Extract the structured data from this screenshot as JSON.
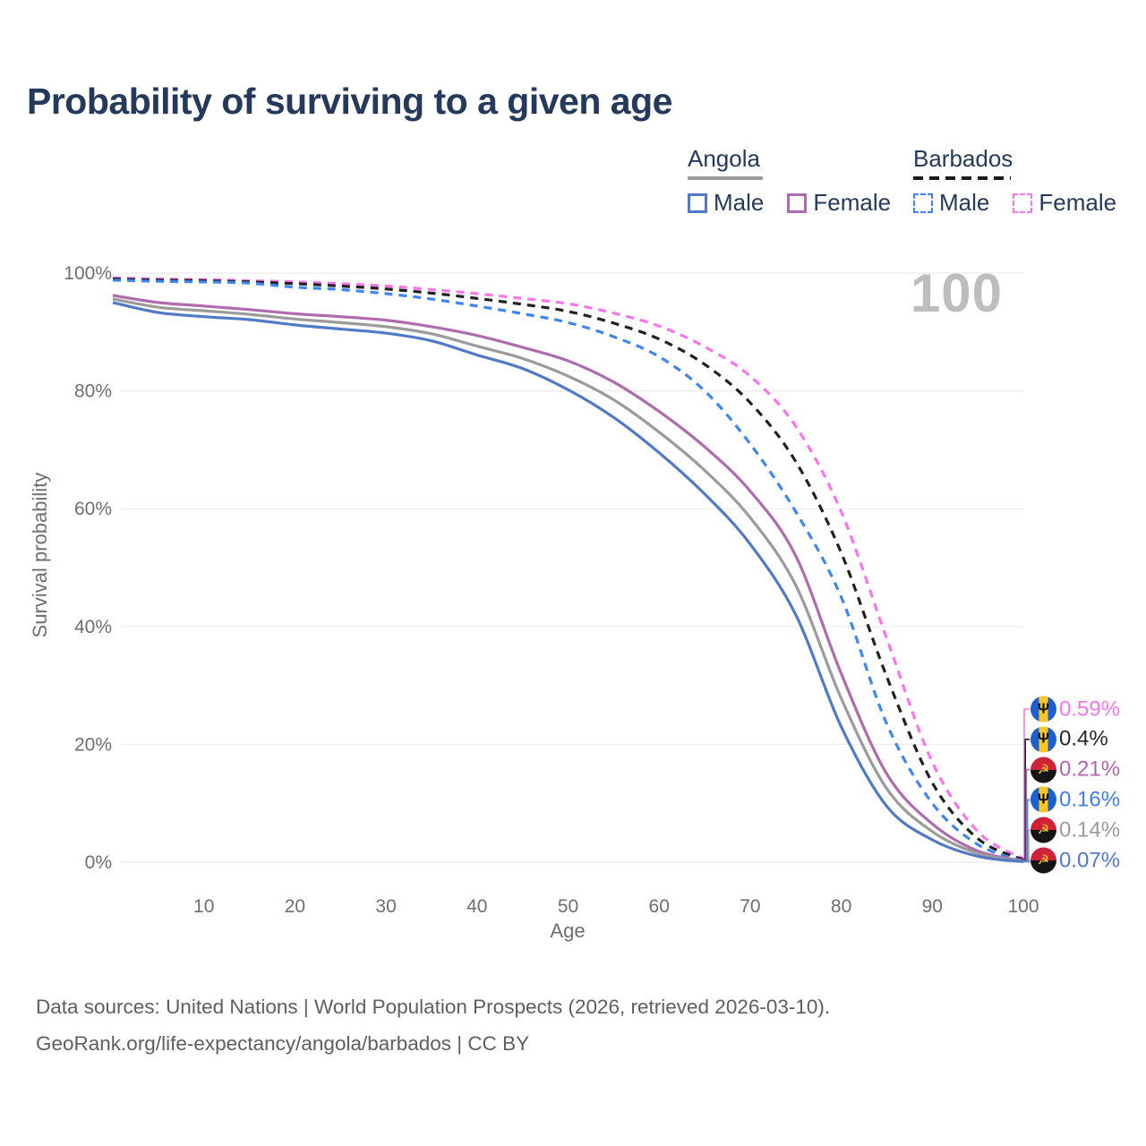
{
  "title": "Probability of surviving to a given age",
  "age_watermark": "100",
  "legend": {
    "angola": {
      "title": "Angola",
      "male_label": "Male",
      "female_label": "Female"
    },
    "barbados": {
      "title": "Barbados",
      "male_label": "Male",
      "female_label": "Female"
    }
  },
  "icons": {
    "barbados_flag_glyph": "Ψ",
    "angola_flag_glyph": "☭"
  },
  "colors": {
    "title_text": "#24395b",
    "axis_text": "#6e6e6e",
    "gridline": "#ebebeb",
    "watermark": "#bdbdbd",
    "angola_male": "#5079c8",
    "angola_female": "#ae6cae",
    "angola_both": "#9b9b9b",
    "barbados_male": "#3e86f2",
    "barbados_female": "#fb74ee",
    "barbados_both": "#212121"
  },
  "chart_data": {
    "type": "line",
    "title": "Probability of surviving to a given age",
    "xlabel": "Age",
    "ylabel": "Survival probability",
    "xlim": [
      0,
      100
    ],
    "ylim": [
      0,
      100
    ],
    "grid": "horizontal-only",
    "legend_position": "top-right",
    "x_ticks": [
      10,
      20,
      30,
      40,
      50,
      60,
      70,
      80,
      90,
      100
    ],
    "y_ticks": [
      0,
      20,
      40,
      60,
      80,
      100
    ],
    "y_tick_suffix": "%",
    "x": [
      0,
      5,
      10,
      15,
      20,
      25,
      30,
      35,
      40,
      45,
      50,
      55,
      60,
      65,
      70,
      75,
      80,
      85,
      90,
      95,
      100
    ],
    "series": [
      {
        "id": "barbados-female",
        "name": "Barbados Female",
        "country": "Barbados",
        "sex": "female",
        "color": "#fb74ee",
        "dash": true,
        "values": [
          99.2,
          99.0,
          98.9,
          98.7,
          98.5,
          98.2,
          97.8,
          97.2,
          96.5,
          95.7,
          94.8,
          93.2,
          91.0,
          87.5,
          82.5,
          74.0,
          59.5,
          38.0,
          17.0,
          5.2,
          0.59
        ]
      },
      {
        "id": "barbados-both",
        "name": "Barbados",
        "country": "Barbados",
        "sex": "both",
        "color": "#212121",
        "dash": true,
        "values": [
          99.0,
          98.8,
          98.7,
          98.5,
          98.2,
          97.8,
          97.3,
          96.6,
          95.7,
          94.7,
          93.5,
          91.5,
          88.8,
          84.5,
          78.0,
          68.0,
          52.5,
          31.5,
          13.5,
          4.0,
          0.4
        ]
      },
      {
        "id": "barbados-male",
        "name": "Barbados Male",
        "country": "Barbados",
        "sex": "male",
        "color": "#3e86f2",
        "dash": true,
        "values": [
          98.8,
          98.6,
          98.5,
          98.3,
          97.6,
          97.2,
          96.5,
          95.6,
          94.4,
          93.1,
          91.6,
          89.2,
          85.8,
          80.0,
          71.0,
          59.5,
          45.0,
          23.5,
          10.0,
          3.0,
          0.16
        ]
      },
      {
        "id": "angola-female",
        "name": "Angola Female",
        "country": "Angola",
        "sex": "female",
        "color": "#ae6cae",
        "dash": false,
        "values": [
          96.2,
          95.0,
          94.4,
          93.8,
          93.1,
          92.6,
          92.0,
          90.9,
          89.4,
          87.4,
          85.1,
          81.5,
          76.5,
          70.5,
          63.0,
          52.0,
          32.0,
          15.0,
          6.5,
          1.9,
          0.21
        ]
      },
      {
        "id": "angola-both",
        "name": "Angola",
        "country": "Angola",
        "sex": "both",
        "color": "#9b9b9b",
        "dash": false,
        "values": [
          95.6,
          94.2,
          93.6,
          93.0,
          92.2,
          91.6,
          90.9,
          89.7,
          87.6,
          85.5,
          82.5,
          78.5,
          73.0,
          66.5,
          58.5,
          47.0,
          27.8,
          12.5,
          5.2,
          1.5,
          0.14
        ]
      },
      {
        "id": "angola-male",
        "name": "Angola Male",
        "country": "Angola",
        "sex": "male",
        "color": "#5079c8",
        "dash": false,
        "values": [
          95.0,
          93.3,
          92.6,
          92.1,
          91.2,
          90.5,
          89.8,
          88.5,
          86.1,
          83.8,
          80.2,
          75.5,
          69.5,
          62.5,
          54.0,
          42.0,
          23.0,
          9.5,
          3.8,
          1.0,
          0.07
        ]
      }
    ],
    "end_labels": [
      {
        "series": "barbados-female",
        "flag": "barbados",
        "text": "0.59%",
        "color": "#fb74ee"
      },
      {
        "series": "barbados-both",
        "flag": "barbados",
        "text": "0.4%",
        "color": "#262626"
      },
      {
        "series": "angola-female",
        "flag": "angola",
        "text": "0.21%",
        "color": "#b065b0"
      },
      {
        "series": "barbados-male",
        "flag": "barbados",
        "text": "0.16%",
        "color": "#3e7ef0"
      },
      {
        "series": "angola-both",
        "flag": "angola",
        "text": "0.14%",
        "color": "#9b9b9b"
      },
      {
        "series": "angola-male",
        "flag": "angola",
        "text": "0.07%",
        "color": "#4d79cf"
      }
    ]
  },
  "footer": {
    "line1": "Data sources: United Nations | World Population Prospects (2026, retrieved 2026-03-10).",
    "line2": "GeoRank.org/life-expectancy/angola/barbados | CC BY"
  }
}
